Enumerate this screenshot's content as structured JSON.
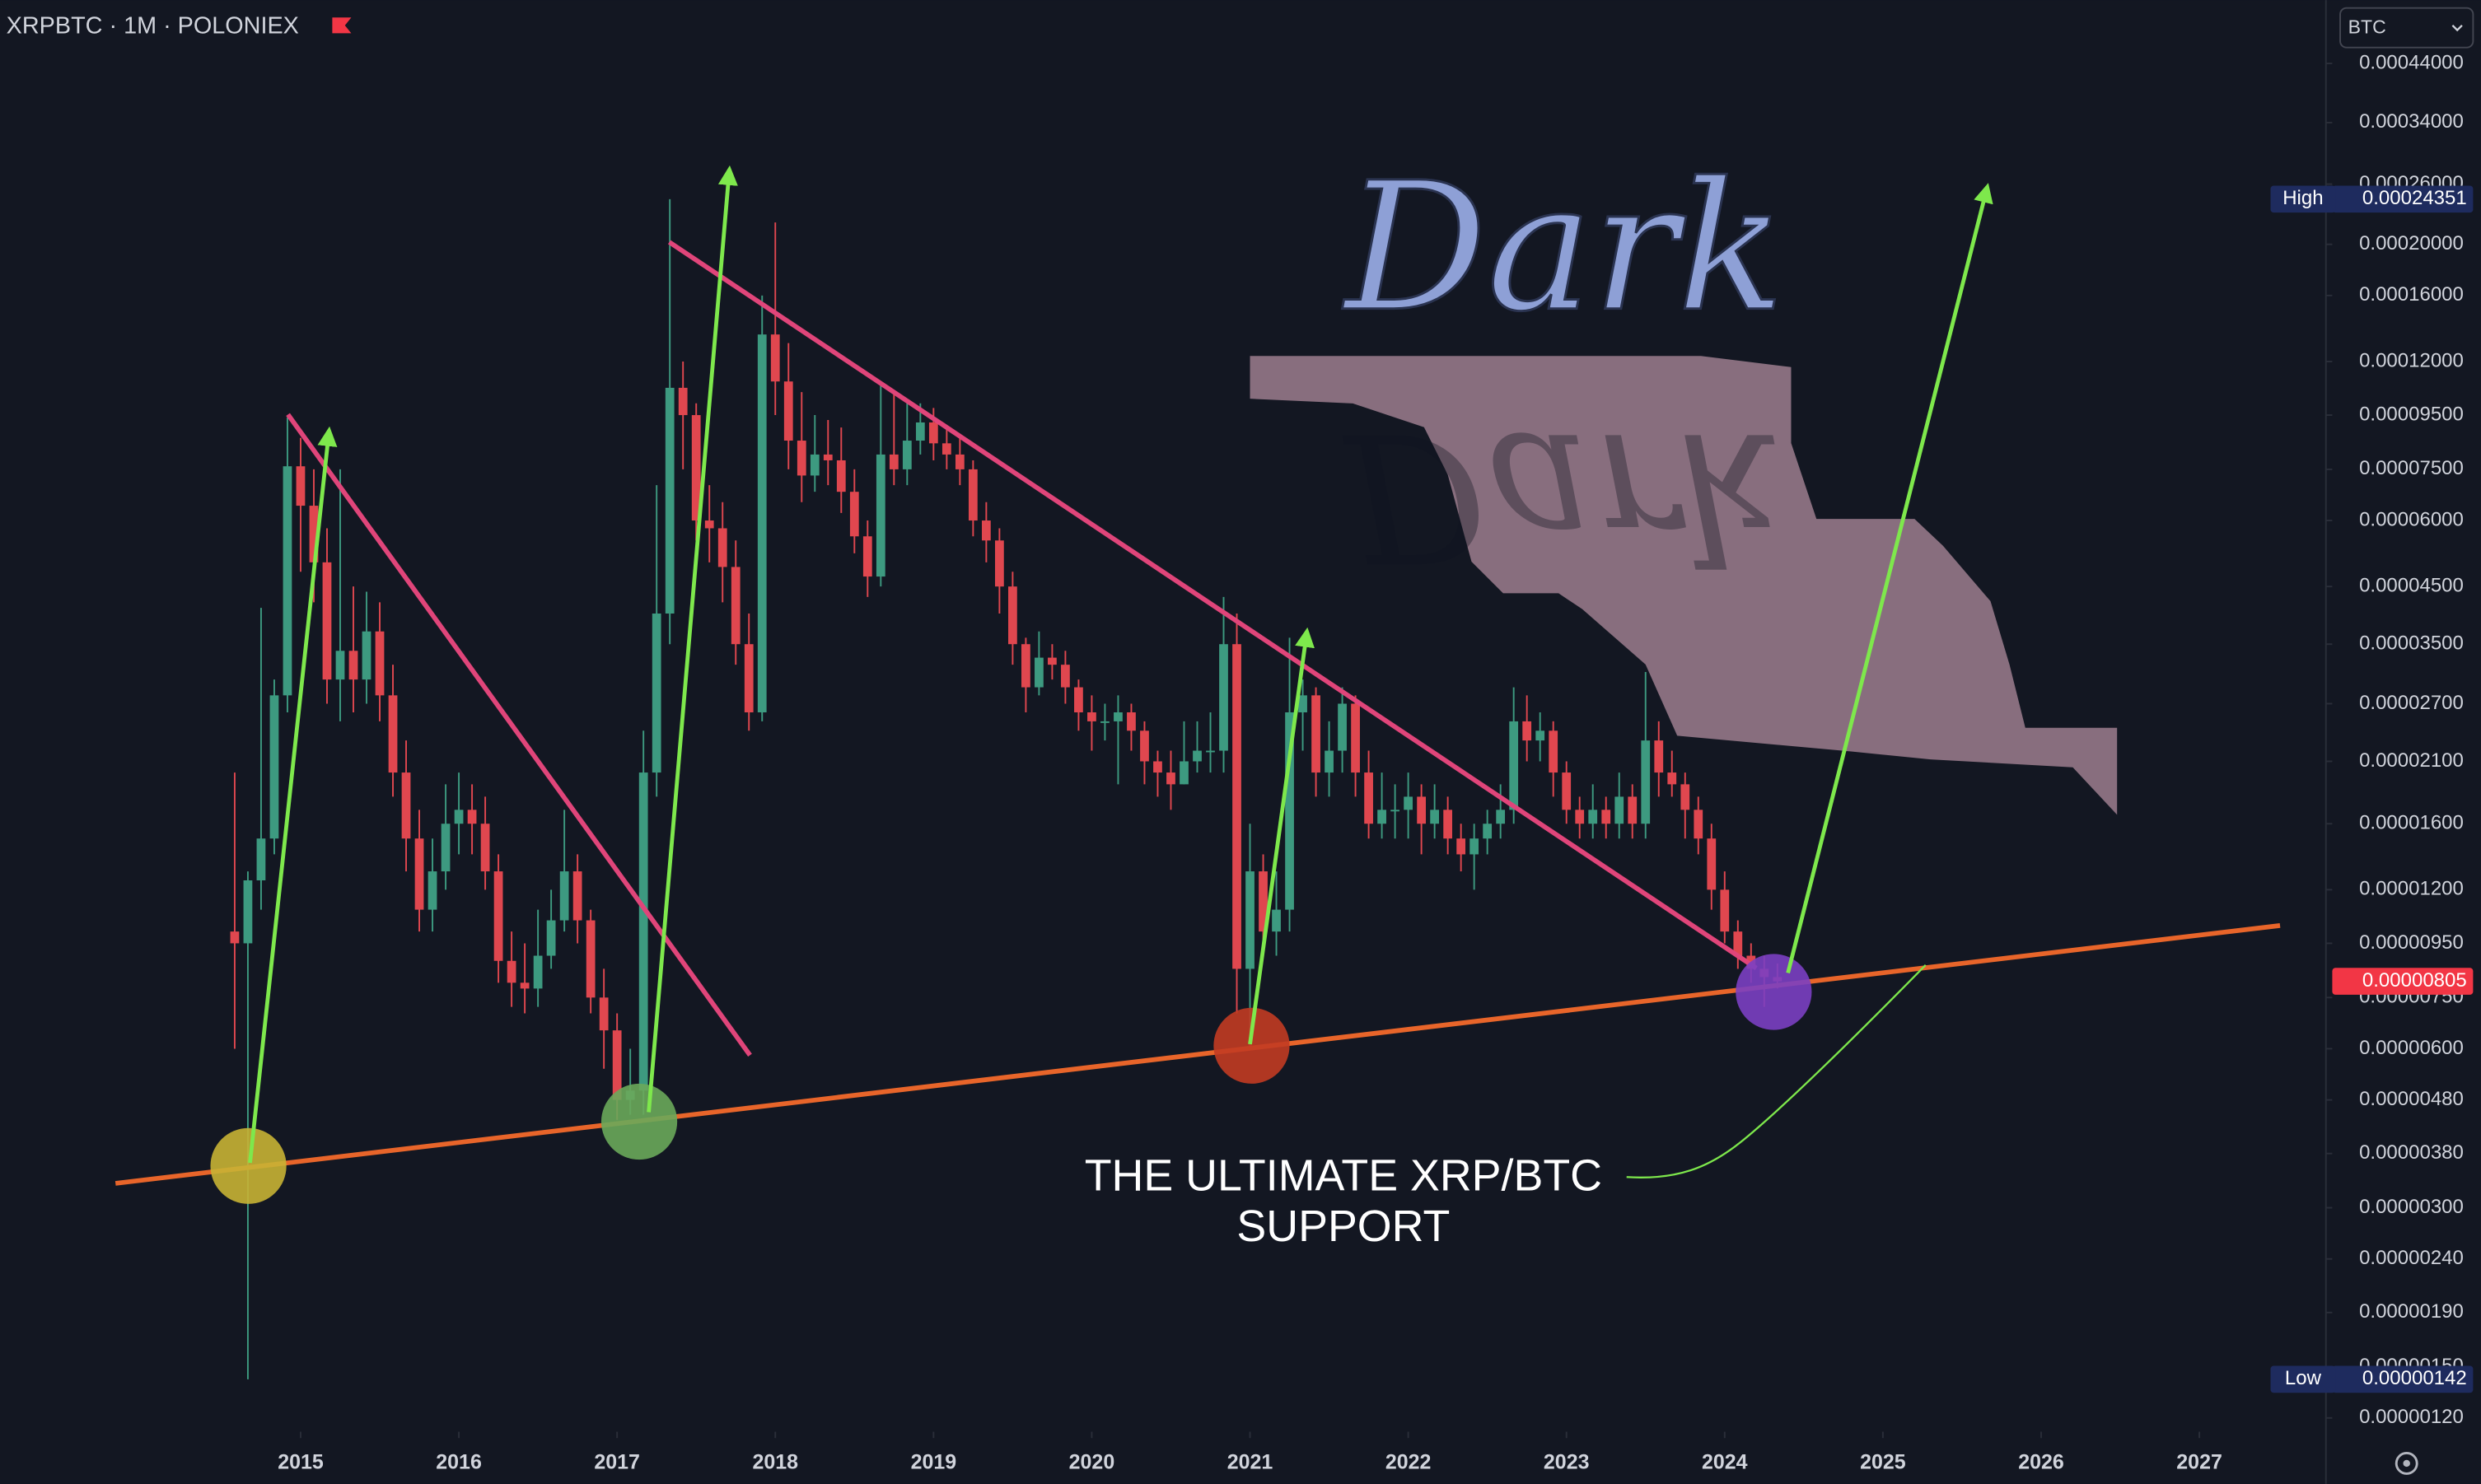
{
  "header": {
    "symbol": "XRPBTC · 1M · POLONIEX",
    "currency": "BTC"
  },
  "chart_data": {
    "type": "candlestick",
    "x": [
      "2014-08",
      "2014-09",
      "2014-10",
      "2014-11",
      "2014-12",
      "2015-01",
      "2015-02",
      "2015-03",
      "2015-04",
      "2015-05",
      "2015-06",
      "2015-07",
      "2015-08",
      "2015-09",
      "2015-10",
      "2015-11",
      "2015-12",
      "2016-01",
      "2016-02",
      "2016-03",
      "2016-04",
      "2016-05",
      "2016-06",
      "2016-07",
      "2016-08",
      "2016-09",
      "2016-10",
      "2016-11",
      "2016-12",
      "2017-01",
      "2017-02",
      "2017-03",
      "2017-04",
      "2017-05",
      "2017-06",
      "2017-07",
      "2017-08",
      "2017-09",
      "2017-10",
      "2017-11",
      "2017-12",
      "2018-01",
      "2018-02",
      "2018-03",
      "2018-04",
      "2018-05",
      "2018-06",
      "2018-07",
      "2018-08",
      "2018-09",
      "2018-10",
      "2018-11",
      "2018-12",
      "2019-01",
      "2019-02",
      "2019-03",
      "2019-04",
      "2019-05",
      "2019-06",
      "2019-07",
      "2019-08",
      "2019-09",
      "2019-10",
      "2019-11",
      "2019-12",
      "2020-01",
      "2020-02",
      "2020-03",
      "2020-04",
      "2020-05",
      "2020-06",
      "2020-07",
      "2020-08",
      "2020-09",
      "2020-10",
      "2020-11",
      "2020-12",
      "2021-01",
      "2021-02",
      "2021-03",
      "2021-04",
      "2021-05",
      "2021-06",
      "2021-07",
      "2021-08",
      "2021-09",
      "2021-10",
      "2021-11",
      "2021-12",
      "2022-01",
      "2022-02",
      "2022-03",
      "2022-04",
      "2022-05",
      "2022-06",
      "2022-07",
      "2022-08",
      "2022-09",
      "2022-10",
      "2022-11",
      "2022-12",
      "2023-01",
      "2023-02",
      "2023-03",
      "2023-04",
      "2023-05",
      "2023-06",
      "2023-07",
      "2023-08",
      "2023-09",
      "2023-10",
      "2023-11",
      "2023-12",
      "2024-01",
      "2024-02",
      "2024-03",
      "2024-04",
      "2024-05"
    ],
    "open": [
      1e-05,
      9.5e-06,
      1.25e-05,
      1.5e-05,
      2.8e-05,
      7.6e-05,
      6.4e-05,
      5e-05,
      3e-05,
      3.4e-05,
      3e-05,
      3.7e-05,
      2.8e-05,
      2e-05,
      1.5e-05,
      1.1e-05,
      1.3e-05,
      1.6e-05,
      1.7e-05,
      1.6e-05,
      1.3e-05,
      8.8e-06,
      8e-06,
      7.8e-06,
      9e-06,
      1.05e-05,
      1.3e-05,
      1.05e-05,
      7.5e-06,
      6.5e-06,
      4.8e-06,
      5e-06,
      2e-05,
      4e-05,
      0.000107,
      9.5e-05,
      6e-05,
      5.8e-05,
      4.9e-05,
      3.5e-05,
      2.6e-05,
      0.000135,
      0.00011,
      8.5e-05,
      7.3e-05,
      8e-05,
      7.8e-05,
      6.8e-05,
      5.6e-05,
      4.7e-05,
      8e-05,
      7.5e-05,
      8.5e-05,
      9.2e-05,
      8.4e-05,
      8e-05,
      7.5e-05,
      6e-05,
      5.5e-05,
      4.5e-05,
      3.5e-05,
      2.9e-05,
      3.3e-05,
      3.2e-05,
      2.9e-05,
      2.6e-05,
      2.5e-05,
      2.5e-05,
      2.6e-05,
      2.4e-05,
      2.1e-05,
      2e-05,
      1.9e-05,
      2.1e-05,
      2.2e-05,
      2.2e-05,
      3.5e-05,
      8.5e-06,
      1.3e-05,
      1e-05,
      1.1e-05,
      2.6e-05,
      2.8e-05,
      2e-05,
      2.2e-05,
      2.7e-05,
      2e-05,
      1.6e-05,
      1.7e-05,
      1.7e-05,
      1.8e-05,
      1.6e-05,
      1.7e-05,
      1.5e-05,
      1.4e-05,
      1.5e-05,
      1.6e-05,
      1.7e-05,
      2.5e-05,
      2.3e-05,
      2.4e-05,
      2e-05,
      1.7e-05,
      1.6e-05,
      1.7e-05,
      1.6e-05,
      1.8e-05,
      1.6e-05,
      2.3e-05,
      2e-05,
      1.9e-05,
      1.7e-05,
      1.5e-05,
      1.2e-05,
      1e-05,
      9e-06,
      8.5e-06,
      8.2e-06
    ],
    "high": [
      2e-05,
      1.3e-05,
      4.1e-05,
      3e-05,
      9.4e-05,
      8.6e-05,
      7.5e-05,
      5.8e-05,
      7.5e-05,
      4.5e-05,
      4.4e-05,
      4.2e-05,
      3.2e-05,
      2.3e-05,
      1.7e-05,
      1.5e-05,
      1.9e-05,
      2e-05,
      1.9e-05,
      1.8e-05,
      1.4e-05,
      1e-05,
      9.5e-06,
      1.1e-05,
      1.2e-05,
      1.7e-05,
      1.4e-05,
      1.1e-05,
      8.5e-06,
      7e-06,
      6e-06,
      2.4e-05,
      7e-05,
      0.00024351,
      0.00012,
      0.0001,
      7e-05,
      6.5e-05,
      5.5e-05,
      4e-05,
      0.00016,
      0.00022,
      0.00013,
      0.000105,
      9.5e-05,
      9.3e-05,
      9e-05,
      7.5e-05,
      6e-05,
      0.00011,
      0.000105,
      0.0001,
      0.0001,
      9.8e-05,
      9e-05,
      8.6e-05,
      7.8e-05,
      6.5e-05,
      5.8e-05,
      4.8e-05,
      3.6e-05,
      3.7e-05,
      3.5e-05,
      3.4e-05,
      3e-05,
      2.8e-05,
      2.7e-05,
      2.8e-05,
      2.7e-05,
      2.5e-05,
      2.2e-05,
      2.2e-05,
      2.5e-05,
      2.5e-05,
      2.6e-05,
      4.3e-05,
      4e-05,
      1.6e-05,
      1.4e-05,
      1.3e-05,
      3.6e-05,
      3e-05,
      2.9e-05,
      2.5e-05,
      2.9e-05,
      2.8e-05,
      2.2e-05,
      2e-05,
      1.9e-05,
      2e-05,
      1.9e-05,
      1.9e-05,
      1.8e-05,
      1.6e-05,
      1.6e-05,
      1.7e-05,
      1.9e-05,
      2.9e-05,
      2.8e-05,
      2.6e-05,
      2.5e-05,
      2.1e-05,
      1.8e-05,
      1.9e-05,
      1.8e-05,
      2e-05,
      1.9e-05,
      3.1e-05,
      2.5e-05,
      2.2e-05,
      2e-05,
      1.8e-05,
      1.6e-05,
      1.3e-05,
      1.05e-05,
      9.5e-06,
      9e-06,
      8.7e-06
    ],
    "low": [
      6e-06,
      1.42e-06,
      1.1e-05,
      1.4e-05,
      2.6e-05,
      4.8e-05,
      4.2e-05,
      2.7e-05,
      2.5e-05,
      2.6e-05,
      2.7e-05,
      2.5e-05,
      1.8e-05,
      1.3e-05,
      1e-05,
      1e-05,
      1.2e-05,
      1.4e-05,
      1.4e-05,
      1.2e-05,
      8e-06,
      7.2e-06,
      7e-06,
      7.2e-06,
      8.5e-06,
      1e-05,
      9.5e-06,
      7e-06,
      5.5e-06,
      4.4e-06,
      4.5e-06,
      4.5e-06,
      1.8e-05,
      3.5e-05,
      7.5e-05,
      5.5e-05,
      5e-05,
      4.2e-05,
      3.2e-05,
      2.4e-05,
      2.5e-05,
      9.5e-05,
      7.5e-05,
      6.5e-05,
      6.8e-05,
      7e-05,
      6.2e-05,
      5.2e-05,
      4.3e-05,
      4.5e-05,
      7e-05,
      7e-05,
      8e-05,
      7.8e-05,
      7.5e-05,
      7e-05,
      5.6e-05,
      5e-05,
      4e-05,
      3.2e-05,
      2.6e-05,
      2.8e-05,
      3e-05,
      2.7e-05,
      2.4e-05,
      2.2e-05,
      2.3e-05,
      1.9e-05,
      2.2e-05,
      1.9e-05,
      1.8e-05,
      1.7e-05,
      1.9e-05,
      2e-05,
      2e-05,
      2e-05,
      7e-06,
      6e-06,
      9e-06,
      9e-06,
      1e-05,
      2.2e-05,
      1.8e-05,
      1.8e-05,
      2e-05,
      1.8e-05,
      1.5e-05,
      1.5e-05,
      1.5e-05,
      1.5e-05,
      1.4e-05,
      1.5e-05,
      1.4e-05,
      1.3e-05,
      1.2e-05,
      1.4e-05,
      1.5e-05,
      1.6e-05,
      2.1e-05,
      2.1e-05,
      1.8e-05,
      1.6e-05,
      1.5e-05,
      1.5e-05,
      1.5e-05,
      1.5e-05,
      1.5e-05,
      1.5e-05,
      1.8e-05,
      1.8e-05,
      1.5e-05,
      1.4e-05,
      1.1e-05,
      9.5e-06,
      8.5e-06,
      8e-06,
      7.2e-06,
      7.8e-06
    ],
    "close": [
      9.5e-06,
      1.25e-05,
      1.5e-05,
      2.8e-05,
      7.6e-05,
      6.4e-05,
      5e-05,
      3e-05,
      3.4e-05,
      3e-05,
      3.7e-05,
      2.8e-05,
      2e-05,
      1.5e-05,
      1.1e-05,
      1.3e-05,
      1.6e-05,
      1.7e-05,
      1.6e-05,
      1.3e-05,
      8.8e-06,
      8e-06,
      7.8e-06,
      9e-06,
      1.05e-05,
      1.3e-05,
      1.05e-05,
      7.5e-06,
      6.5e-06,
      4.8e-06,
      5e-06,
      2e-05,
      4e-05,
      0.000107,
      9.5e-05,
      6e-05,
      5.8e-05,
      4.9e-05,
      3.5e-05,
      2.6e-05,
      0.000135,
      0.00011,
      8.5e-05,
      7.3e-05,
      8e-05,
      7.8e-05,
      6.8e-05,
      5.6e-05,
      4.7e-05,
      8e-05,
      7.5e-05,
      8.5e-05,
      9.2e-05,
      8.4e-05,
      8e-05,
      7.5e-05,
      6e-05,
      5.5e-05,
      4.5e-05,
      3.5e-05,
      2.9e-05,
      3.3e-05,
      3.2e-05,
      2.9e-05,
      2.6e-05,
      2.5e-05,
      2.5e-05,
      2.6e-05,
      2.4e-05,
      2.1e-05,
      2e-05,
      1.9e-05,
      2.1e-05,
      2.2e-05,
      2.2e-05,
      3.5e-05,
      8.5e-06,
      1.3e-05,
      1e-05,
      1.1e-05,
      2.6e-05,
      2.8e-05,
      2e-05,
      2.2e-05,
      2.7e-05,
      2e-05,
      1.6e-05,
      1.7e-05,
      1.7e-05,
      1.8e-05,
      1.6e-05,
      1.7e-05,
      1.5e-05,
      1.4e-05,
      1.5e-05,
      1.6e-05,
      1.7e-05,
      2.5e-05,
      2.3e-05,
      2.4e-05,
      2e-05,
      1.7e-05,
      1.6e-05,
      1.7e-05,
      1.6e-05,
      1.8e-05,
      1.6e-05,
      2.3e-05,
      2e-05,
      1.9e-05,
      1.7e-05,
      1.5e-05,
      1.2e-05,
      1e-05,
      9e-06,
      8.5e-06,
      8.2e-06,
      8.05e-06
    ],
    "colors": {
      "up": "#3d9a80",
      "down": "#e0474f"
    },
    "log_scale": true,
    "ylim": [
      1.13e-06,
      0.00058
    ],
    "yticks": [
      {
        "value": 0.00044,
        "label": "0.00044000"
      },
      {
        "value": 0.00034,
        "label": "0.00034000"
      },
      {
        "value": 0.00026,
        "label": "0.00026000"
      },
      {
        "value": 0.0002,
        "label": "0.00020000"
      },
      {
        "value": 0.00016,
        "label": "0.00016000"
      },
      {
        "value": 0.00012,
        "label": "0.00012000"
      },
      {
        "value": 9.5e-05,
        "label": "0.00009500"
      },
      {
        "value": 7.5e-05,
        "label": "0.00007500"
      },
      {
        "value": 6e-05,
        "label": "0.00006000"
      },
      {
        "value": 4.5e-05,
        "label": "0.00004500"
      },
      {
        "value": 3.5e-05,
        "label": "0.00003500"
      },
      {
        "value": 2.7e-05,
        "label": "0.00002700"
      },
      {
        "value": 2.1e-05,
        "label": "0.00002100"
      },
      {
        "value": 1.6e-05,
        "label": "0.00001600"
      },
      {
        "value": 1.2e-05,
        "label": "0.00001200"
      },
      {
        "value": 9.5e-06,
        "label": "0.00000950"
      },
      {
        "value": 7.5e-06,
        "label": "0.00000750"
      },
      {
        "value": 6e-06,
        "label": "0.00000600"
      },
      {
        "value": 4.8e-06,
        "label": "0.00000480"
      },
      {
        "value": 3.8e-06,
        "label": "0.00000380"
      },
      {
        "value": 3e-06,
        "label": "0.00000300"
      },
      {
        "value": 2.4e-06,
        "label": "0.00000240"
      },
      {
        "value": 1.9e-06,
        "label": "0.00000190"
      },
      {
        "value": 1.5e-06,
        "label": "0.00000150"
      },
      {
        "value": 1.2e-06,
        "label": "0.00000120"
      }
    ],
    "xlim": [
      2013.1,
      2027.8
    ],
    "xticks": [
      2015,
      2016,
      2017,
      2018,
      2019,
      2020,
      2021,
      2022,
      2023,
      2024,
      2025,
      2026,
      2027
    ],
    "price_markers": [
      {
        "label": "High",
        "value": 0.00024351,
        "color": "#1e2b5e"
      },
      {
        "label": "Low",
        "value": 1.42e-06,
        "color": "#1e2b5e"
      },
      {
        "value": 8.05e-06,
        "color": "#f23645"
      }
    ],
    "watermark": "Dark",
    "annotation": [
      "THE ULTIMATE XRP/BTC",
      "SUPPORT"
    ]
  }
}
